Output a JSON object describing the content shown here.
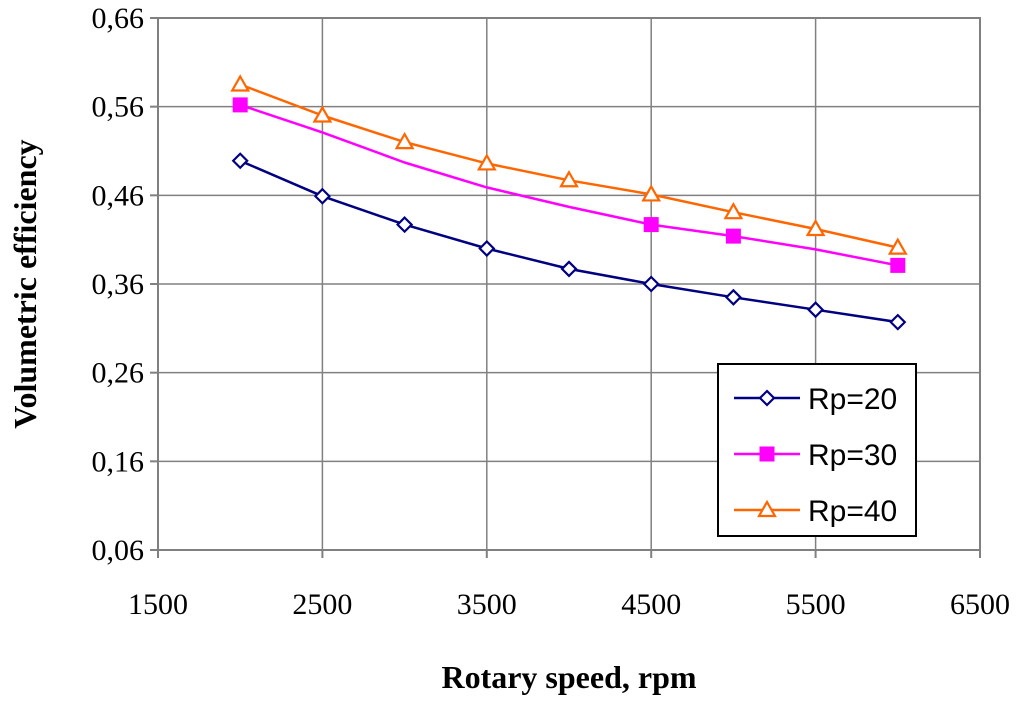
{
  "chart_data": {
    "type": "line",
    "title": "",
    "xlabel": "Rotary speed, rpm",
    "ylabel": "Volumetric efficiency",
    "xlim": [
      1500,
      6500
    ],
    "ylim": [
      0.06,
      0.66
    ],
    "x_ticks": [
      1500,
      2500,
      3500,
      4500,
      5500,
      6500
    ],
    "x_tick_labels": [
      "1500",
      "2500",
      "3500",
      "4500",
      "5500",
      "6500"
    ],
    "y_ticks": [
      0.06,
      0.16,
      0.26,
      0.36,
      0.46,
      0.56,
      0.66
    ],
    "y_tick_labels": [
      "0,06",
      "0,16",
      "0,26",
      "0,36",
      "0,46",
      "0,56",
      "0,66"
    ],
    "grid": true,
    "legend_position": "bottom-right",
    "series": [
      {
        "name": "Rp=20",
        "color": "#000080",
        "marker": "diamond-open",
        "x": [
          2000,
          2500,
          3000,
          3500,
          4000,
          4500,
          5000,
          5500,
          6000
        ],
        "values": [
          0.499,
          0.459,
          0.427,
          0.4,
          0.377,
          0.36,
          0.345,
          0.331,
          0.317
        ]
      },
      {
        "name": "Rp=30",
        "color": "#FF00FF",
        "marker": "square-filled",
        "x": [
          2000,
          4500,
          5000,
          6000
        ],
        "values": [
          0.562,
          0.427,
          0.414,
          0.381
        ],
        "line_x": [
          2000,
          2500,
          3000,
          3500,
          4000,
          4500,
          5000,
          5500,
          6000
        ],
        "line_values": [
          0.562,
          0.531,
          0.497,
          0.469,
          0.447,
          0.427,
          0.414,
          0.399,
          0.381
        ]
      },
      {
        "name": "Rp=40",
        "color": "#FF6600",
        "marker": "triangle-open",
        "x": [
          2000,
          2500,
          3000,
          3500,
          4000,
          4500,
          5000,
          5500,
          6000
        ],
        "values": [
          0.585,
          0.55,
          0.52,
          0.496,
          0.477,
          0.461,
          0.441,
          0.422,
          0.401
        ]
      }
    ]
  }
}
